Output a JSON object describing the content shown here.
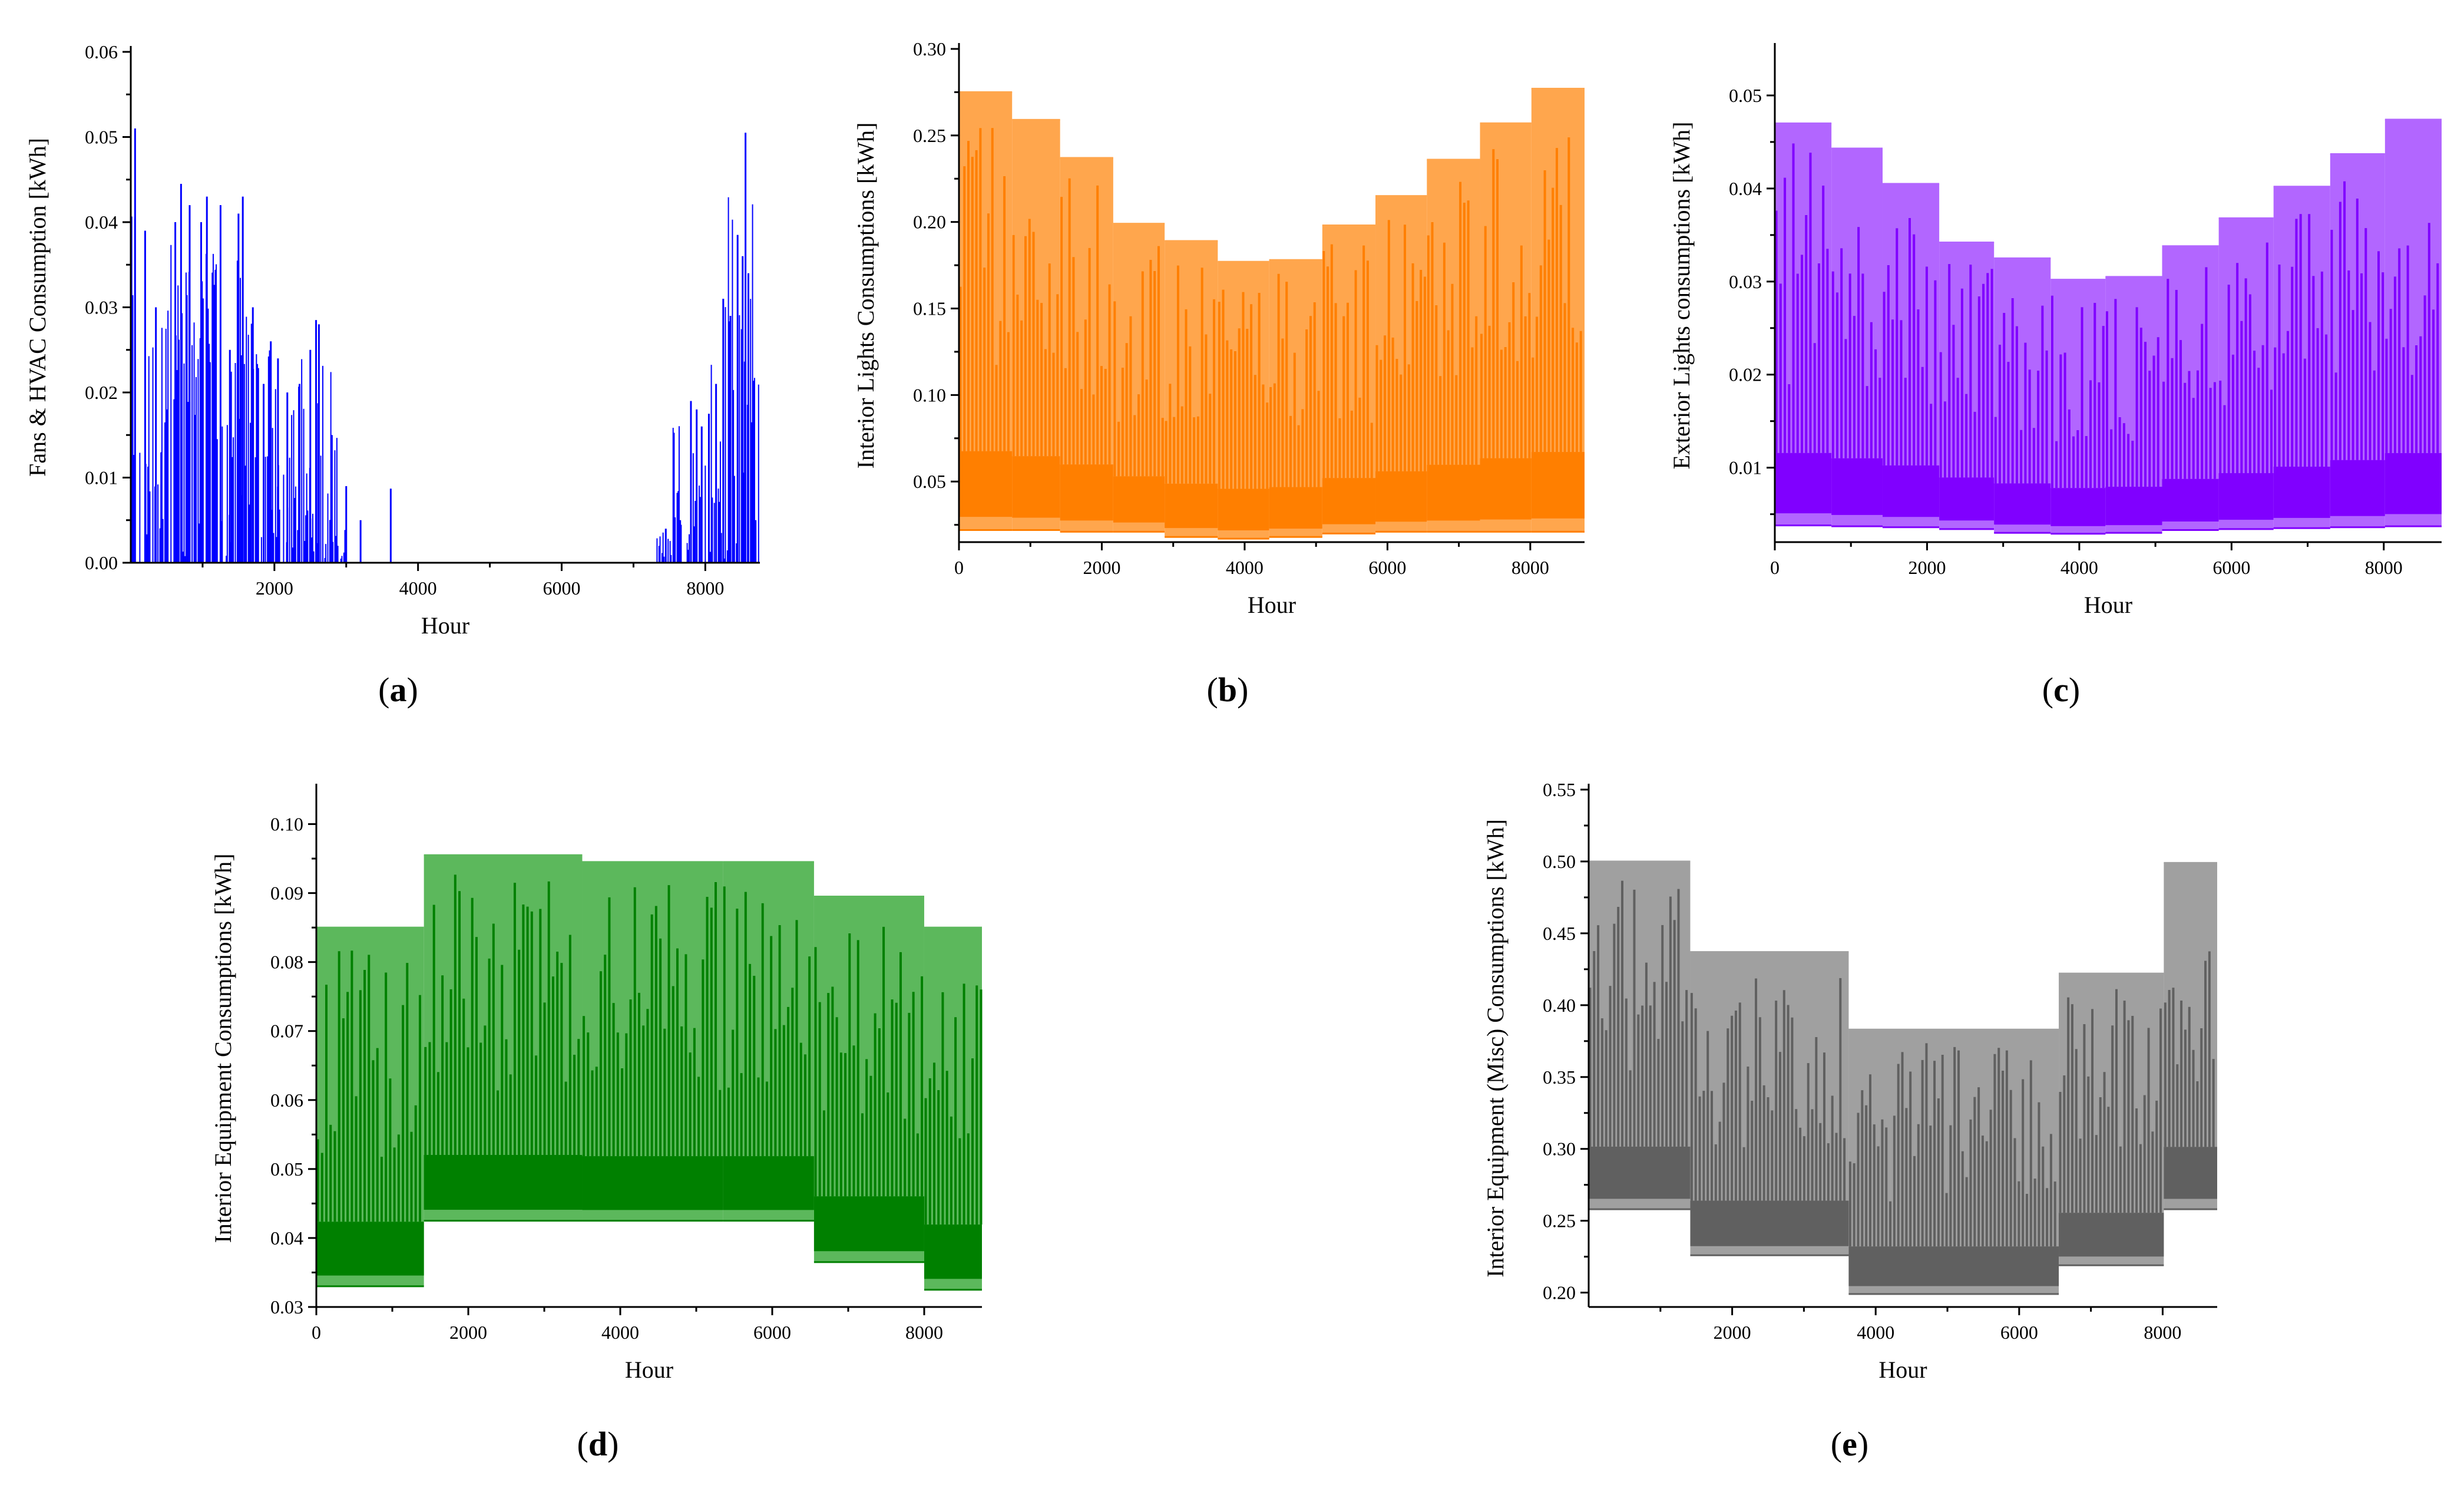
{
  "chart_data": [
    {
      "id": "a",
      "panel_label": "a",
      "type": "bar",
      "color": "#0000ff",
      "pattern": "sparse_spikes",
      "xlabel": "Hour",
      "ylabel": "Fans & HVAC Consumption [kWh]",
      "xlim": [
        0,
        8760
      ],
      "ylim": [
        0,
        0.06
      ],
      "xticks": [
        "2000",
        "4000",
        "6000",
        "8000"
      ],
      "xtick_values": [
        2000,
        4000,
        6000,
        8000
      ],
      "yticks": [
        "0.00",
        "0.01",
        "0.02",
        "0.03",
        "0.04",
        "0.05",
        "0.06"
      ],
      "ytick_values": [
        0,
        0.01,
        0.02,
        0.03,
        0.04,
        0.05,
        0.06
      ],
      "x": [
        60,
        200,
        350,
        500,
        620,
        700,
        820,
        980,
        1060,
        1150,
        1250,
        1380,
        1500,
        1560,
        1700,
        1850,
        1950,
        2050,
        2180,
        2350,
        2500,
        2580,
        2620,
        2800,
        3000,
        3200,
        3620,
        7450,
        7650,
        7800,
        7880,
        7950,
        8050,
        8150,
        8250,
        8350,
        8450,
        8520,
        8560,
        8600,
        8650,
        8700
      ],
      "values": [
        0.051,
        0.039,
        0.03,
        0.018,
        0.04,
        0.0445,
        0.042,
        0.04,
        0.043,
        0.03,
        0.042,
        0.025,
        0.041,
        0.043,
        0.03,
        0.021,
        0.026,
        0.024,
        0.02,
        0.021,
        0.025,
        0.0285,
        0.028,
        0.015,
        0.009,
        0.005,
        0.0087,
        0.004,
        0.005,
        0.019,
        0.018,
        0.016,
        0.0175,
        0.021,
        0.031,
        0.029,
        0.0385,
        0.036,
        0.0505,
        0.034,
        0.0165,
        0.005
      ]
    },
    {
      "id": "b",
      "panel_label": "b",
      "type": "area",
      "color": "#ff7f00",
      "band_color": "#ffa64d",
      "pattern": "monthly_steps",
      "xlabel": "Hour",
      "ylabel": "Interior Lights Consumptions [kWh]",
      "xlim": [
        0,
        8760
      ],
      "ylim": [
        0.015,
        0.3
      ],
      "xticks": [
        "0",
        "2000",
        "4000",
        "6000",
        "8000"
      ],
      "xtick_values": [
        0,
        2000,
        4000,
        6000,
        8000
      ],
      "yticks": [
        "0.05",
        "0.10",
        "0.15",
        "0.20",
        "0.25",
        "0.30"
      ],
      "ytick_values": [
        0.05,
        0.1,
        0.15,
        0.2,
        0.25,
        0.3
      ],
      "x": [
        0,
        744,
        1416,
        2160,
        2880,
        3624,
        4344,
        5088,
        5832,
        6552,
        7296,
        8016,
        8760
      ],
      "monthly_max": [
        0.275,
        0.259,
        0.237,
        0.199,
        0.189,
        0.177,
        0.178,
        0.198,
        0.215,
        0.236,
        0.257,
        0.277
      ],
      "monthly_min": [
        0.022,
        0.022,
        0.021,
        0.021,
        0.018,
        0.017,
        0.018,
        0.02,
        0.021,
        0.021,
        0.021,
        0.021
      ]
    },
    {
      "id": "c",
      "panel_label": "c",
      "type": "area",
      "color": "#8000ff",
      "band_color": "#b266ff",
      "pattern": "monthly_steps",
      "xlabel": "Hour",
      "ylabel": "Exterior Lights consumptions [kWh]",
      "xlim": [
        0,
        8760
      ],
      "ylim": [
        0.002,
        0.055
      ],
      "xticks": [
        "0",
        "2000",
        "4000",
        "6000",
        "8000"
      ],
      "xtick_values": [
        0,
        2000,
        4000,
        6000,
        8000
      ],
      "yticks": [
        "0.01",
        "0.02",
        "0.03",
        "0.04",
        "0.05"
      ],
      "ytick_values": [
        0.01,
        0.02,
        0.03,
        0.04,
        0.05
      ],
      "x": [
        0,
        744,
        1416,
        2160,
        2880,
        3624,
        4344,
        5088,
        5832,
        6552,
        7296,
        8016,
        8760
      ],
      "monthly_max": [
        0.047,
        0.0443,
        0.0405,
        0.0342,
        0.0325,
        0.0302,
        0.0305,
        0.0338,
        0.0368,
        0.0402,
        0.0437,
        0.0474
      ],
      "monthly_min": [
        0.0038,
        0.0037,
        0.0036,
        0.0034,
        0.003,
        0.0029,
        0.003,
        0.0033,
        0.0034,
        0.0035,
        0.0036,
        0.0037
      ]
    },
    {
      "id": "d",
      "panel_label": "d",
      "type": "area",
      "color": "#008000",
      "band_color": "#5cb85c",
      "pattern": "seasonal_steps",
      "xlabel": "Hour",
      "ylabel": "Interior Equipment Consumptions [kWh]",
      "xlim": [
        0,
        8760
      ],
      "ylim": [
        0.03,
        0.105
      ],
      "xticks": [
        "0",
        "2000",
        "4000",
        "6000",
        "8000"
      ],
      "xtick_values": [
        0,
        2000,
        4000,
        6000,
        8000
      ],
      "yticks": [
        "0.03",
        "0.04",
        "0.05",
        "0.06",
        "0.07",
        "0.08",
        "0.09",
        "0.10"
      ],
      "ytick_values": [
        0.03,
        0.04,
        0.05,
        0.06,
        0.07,
        0.08,
        0.09,
        0.1
      ],
      "x": [
        0,
        1416,
        3500,
        5350,
        6550,
        8000,
        8760
      ],
      "segment_max": [
        0.085,
        0.0955,
        0.0945,
        0.0945,
        0.0895,
        0.085
      ],
      "segment_min": [
        0.033,
        0.0425,
        0.0425,
        0.0425,
        0.0365,
        0.0325
      ]
    },
    {
      "id": "e",
      "panel_label": "e",
      "type": "area",
      "color": "#606060",
      "band_color": "#a0a0a0",
      "pattern": "seasonal_steps",
      "xlabel": "Hour",
      "ylabel": "Interior Equipment (Misc) Consumptions [kWh]",
      "xlim": [
        0,
        8760
      ],
      "ylim": [
        0.19,
        0.55
      ],
      "xticks": [
        "2000",
        "4000",
        "6000",
        "8000"
      ],
      "xtick_values": [
        2000,
        4000,
        6000,
        8000
      ],
      "yticks": [
        "0.20",
        "0.25",
        "0.30",
        "0.35",
        "0.40",
        "0.45",
        "0.50",
        "0.55"
      ],
      "ytick_values": [
        0.2,
        0.25,
        0.3,
        0.35,
        0.4,
        0.45,
        0.5,
        0.55
      ],
      "x": [
        0,
        1416,
        3624,
        6552,
        8016,
        8760
      ],
      "segment_max": [
        0.5,
        0.437,
        0.383,
        0.422,
        0.499
      ],
      "segment_min": [
        0.258,
        0.226,
        0.199,
        0.219,
        0.258
      ]
    }
  ]
}
